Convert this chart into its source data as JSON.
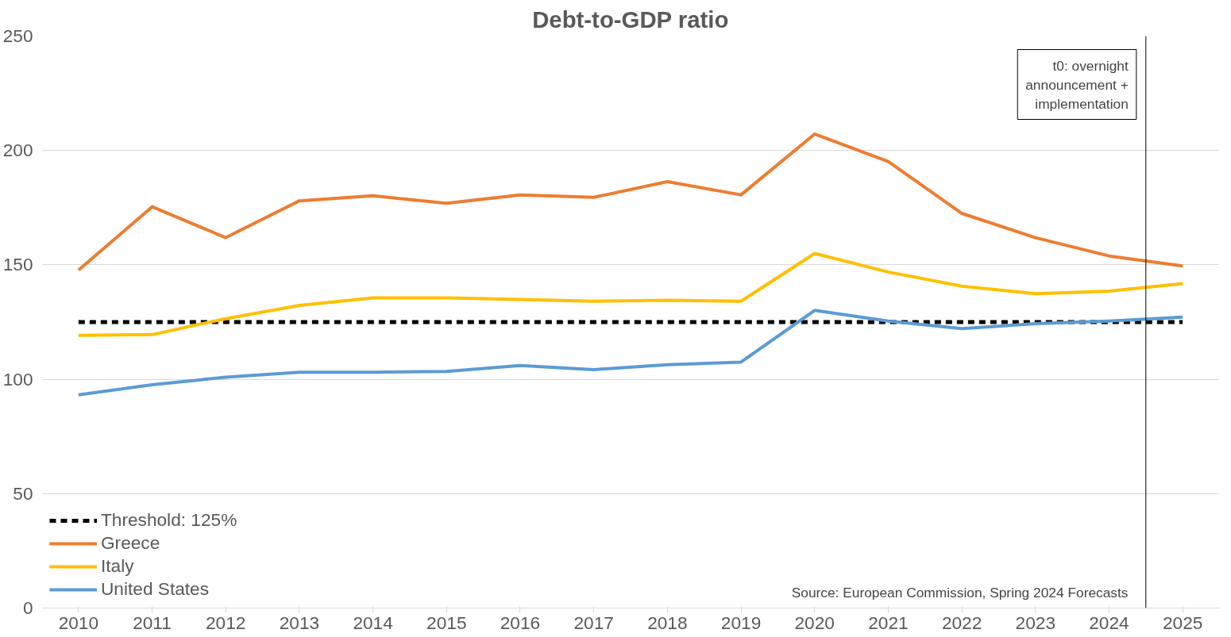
{
  "chart_data": {
    "type": "line",
    "title": "Debt-to-GDP ratio",
    "x": [
      2010,
      2011,
      2012,
      2013,
      2014,
      2015,
      2016,
      2017,
      2018,
      2019,
      2020,
      2021,
      2022,
      2023,
      2024,
      2025
    ],
    "xlim": [
      2009.5,
      2025.5
    ],
    "xticks": [
      2010,
      2011,
      2012,
      2013,
      2014,
      2015,
      2016,
      2017,
      2018,
      2019,
      2020,
      2021,
      2022,
      2023,
      2024,
      2025
    ],
    "ylim": [
      0,
      250
    ],
    "yticks": [
      0,
      50,
      100,
      150,
      200,
      250
    ],
    "series": [
      {
        "name": "Threshold: 125%",
        "color": "#000000",
        "line_style": "dashed",
        "values": [
          125,
          125,
          125,
          125,
          125,
          125,
          125,
          125,
          125,
          125,
          125,
          125,
          125,
          125,
          125,
          125
        ]
      },
      {
        "name": "Greece",
        "color": "#ed7d31",
        "values": [
          147.7,
          175.4,
          161.9,
          178.0,
          180.2,
          176.9,
          180.6,
          179.5,
          186.4,
          180.6,
          207.2,
          195.2,
          172.5,
          161.9,
          153.9,
          149.5
        ]
      },
      {
        "name": "Italy",
        "color": "#ffc000",
        "values": [
          119.2,
          119.5,
          126.5,
          132.3,
          135.6,
          135.6,
          134.9,
          134.1,
          134.5,
          134.1,
          155.0,
          146.9,
          140.7,
          137.4,
          138.5,
          141.8
        ]
      },
      {
        "name": "United States",
        "color": "#5b9bd5",
        "values": [
          93.2,
          97.6,
          100.9,
          103.1,
          103.1,
          103.4,
          106.0,
          104.2,
          106.4,
          107.5,
          130.1,
          125.4,
          122.1,
          124.3,
          125.4,
          127.2
        ]
      }
    ],
    "ref_lines": [
      {
        "axis": "x",
        "value": 2024.5,
        "label": "t0: overnight\nannouncement +\nimplementation",
        "color": "#000000"
      }
    ],
    "annotations": [
      "Source: European Commission, Spring 2024 Forecasts"
    ],
    "grid": "y",
    "legend": "bottom left",
    "marker": "none"
  }
}
